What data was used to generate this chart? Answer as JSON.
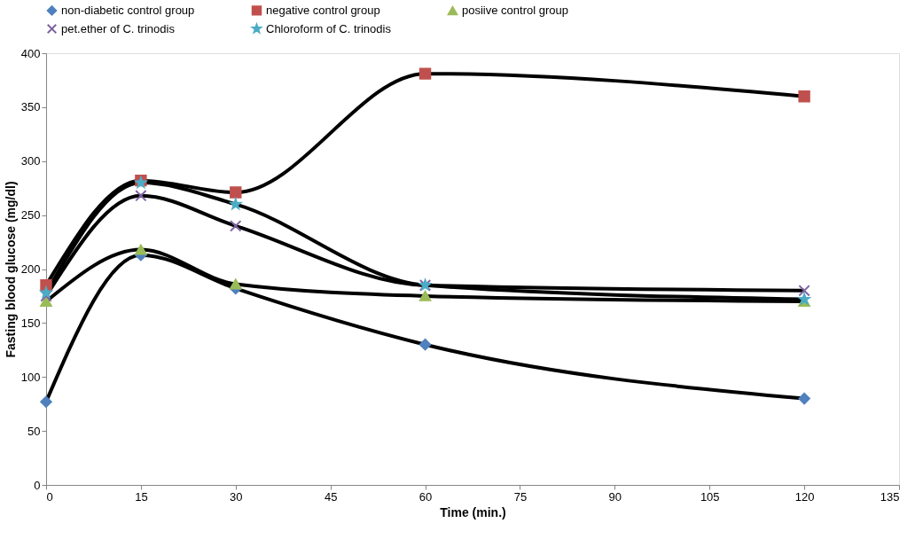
{
  "chart_data": {
    "type": "line",
    "x": [
      0,
      15,
      30,
      60,
      120
    ],
    "xlabel": "Time (min.)",
    "ylabel": "Fasting blood glucose  (mg/dl)",
    "xlim": [
      0,
      135
    ],
    "xticks": [
      0,
      15,
      30,
      45,
      60,
      75,
      90,
      105,
      120,
      135
    ],
    "ylim": [
      0,
      400
    ],
    "yticks": [
      0,
      50,
      100,
      150,
      200,
      250,
      300,
      350,
      400
    ],
    "grid": false,
    "legend": "top",
    "line_style": "solid",
    "series": [
      {
        "name": "non-diabetic control group",
        "color": "#4f81bd",
        "marker": "diamond",
        "values": [
          77,
          213,
          182,
          130,
          80
        ]
      },
      {
        "name": "negative control group",
        "color": "#c0504d",
        "marker": "square",
        "values": [
          185,
          282,
          271,
          381,
          360
        ]
      },
      {
        "name": "posiive control group",
        "color": "#9bbb59",
        "marker": "triangle",
        "values": [
          170,
          218,
          186,
          175,
          170
        ]
      },
      {
        "name": "pet.ether of C. trinodis",
        "color": "#8064a2",
        "marker": "cross",
        "values": [
          175,
          268,
          240,
          185,
          180
        ]
      },
      {
        "name": "Chloroform of C. trinodis",
        "color": "#4bacc6",
        "marker": "star",
        "values": [
          178,
          280,
          260,
          185,
          172
        ]
      }
    ]
  }
}
